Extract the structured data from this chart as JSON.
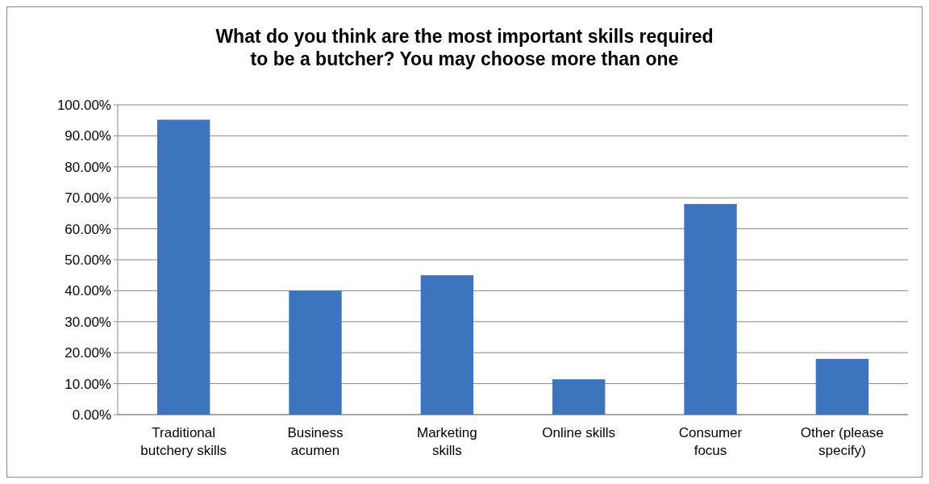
{
  "chart_data": {
    "type": "bar",
    "title": "What do you think are the most important skills required to be a butcher? You may choose more than one",
    "categories": [
      "Traditional butchery skills",
      "Business acumen",
      "Marketing skills",
      "Online skills",
      "Consumer focus",
      "Other (please specify)"
    ],
    "values": [
      95.2,
      40,
      45,
      11.4,
      68,
      18
    ],
    "color": "#3c74bd",
    "ylim": [
      0,
      100
    ],
    "yticks": [
      {
        "value": 0,
        "label": "0.00%"
      },
      {
        "value": 10,
        "label": "10.00%"
      },
      {
        "value": 20,
        "label": "20.00%"
      },
      {
        "value": 30,
        "label": "30.00%"
      },
      {
        "value": 40,
        "label": "40.00%"
      },
      {
        "value": 50,
        "label": "50.00%"
      },
      {
        "value": 60,
        "label": "60.00%"
      },
      {
        "value": 70,
        "label": "70.00%"
      },
      {
        "value": 80,
        "label": "80.00%"
      },
      {
        "value": 90,
        "label": "90.00%"
      },
      {
        "value": 100,
        "label": "100.00%"
      }
    ],
    "grid": "y"
  }
}
